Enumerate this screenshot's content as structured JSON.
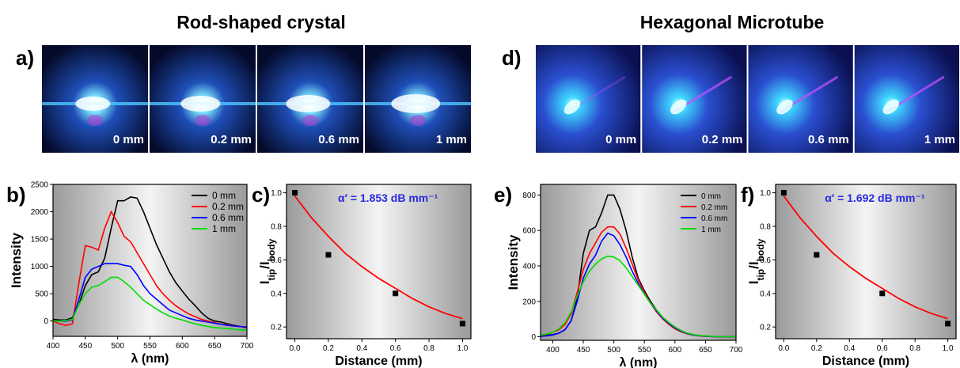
{
  "figure": {
    "left_title": "Rod-shaped crystal",
    "right_title": "Hexagonal Microtube"
  },
  "photo_panels": [
    {
      "label": "a)",
      "frames": [
        "0 mm",
        "0.2 mm",
        "0.6 mm",
        "1 mm"
      ]
    },
    {
      "label": "d)",
      "frames": [
        "0 mm",
        "0.2 mm",
        "0.6 mm",
        "1 mm"
      ]
    }
  ],
  "chart_data": [
    {
      "type": "line",
      "panel_label": "b)",
      "xlabel": "λ (nm)",
      "ylabel": [
        "Intensity"
      ],
      "xlim": [
        400,
        700
      ],
      "ylim": [
        -280,
        2500
      ],
      "xticks": [
        400,
        450,
        500,
        550,
        600,
        650,
        700
      ],
      "yticks": [
        0,
        500,
        1000,
        1500,
        2000,
        2500
      ],
      "legend": "upper right",
      "x": [
        400,
        410,
        420,
        430,
        440,
        450,
        460,
        470,
        480,
        490,
        500,
        510,
        520,
        530,
        540,
        550,
        560,
        570,
        580,
        590,
        600,
        610,
        620,
        630,
        640,
        650,
        660,
        670,
        680,
        690,
        700
      ],
      "series": [
        {
          "name": "0 mm",
          "color": "#000000",
          "values": [
            30,
            20,
            20,
            60,
            300,
            650,
            850,
            900,
            1150,
            1700,
            2200,
            2200,
            2270,
            2250,
            2000,
            1700,
            1400,
            1150,
            900,
            700,
            550,
            400,
            280,
            150,
            50,
            0,
            -20,
            -50,
            -80,
            -100,
            -120
          ]
        },
        {
          "name": "0.2 mm",
          "color": "#ff0000",
          "values": [
            0,
            -50,
            -80,
            -50,
            700,
            1380,
            1350,
            1300,
            1700,
            2000,
            1800,
            1550,
            1450,
            1250,
            1050,
            850,
            650,
            500,
            380,
            280,
            200,
            130,
            80,
            30,
            0,
            -30,
            -60,
            -70,
            -90,
            -100,
            -110
          ]
        },
        {
          "name": "0.6 mm",
          "color": "#0000ff",
          "values": [
            0,
            0,
            0,
            20,
            400,
            800,
            950,
            1000,
            1050,
            1050,
            1050,
            1020,
            1000,
            850,
            650,
            500,
            400,
            300,
            200,
            150,
            100,
            50,
            20,
            0,
            -20,
            -40,
            -60,
            -80,
            -90,
            -100,
            -110
          ]
        },
        {
          "name": "1 mm",
          "color": "#00dd00",
          "values": [
            0,
            0,
            10,
            30,
            300,
            500,
            620,
            650,
            720,
            800,
            800,
            720,
            620,
            500,
            380,
            300,
            220,
            150,
            90,
            50,
            20,
            -20,
            -50,
            -80,
            -100,
            -120,
            -130,
            -140,
            -150,
            -160,
            -170
          ]
        }
      ]
    },
    {
      "type": "scatter",
      "panel_label": "c)",
      "xlabel": "Distance (mm)",
      "ylabel": [
        "I",
        "tip",
        "/I",
        "body"
      ],
      "annotation": "α′ = 1.853 dB mm⁻¹",
      "xlim": [
        -0.05,
        1.05
      ],
      "ylim": [
        0.13,
        1.05
      ],
      "xticks": [
        {
          "value": 0,
          "label": "0.0"
        },
        0.2,
        0.4,
        0.6,
        0.8,
        {
          "value": 1,
          "label": "1.0"
        }
      ],
      "yticks": [
        0.2,
        0.4,
        0.6,
        0.8,
        {
          "value": 1,
          "label": "1.0"
        }
      ],
      "points": {
        "color": "#000000",
        "x": [
          0,
          0.2,
          0.6,
          1.0
        ],
        "y": [
          1.0,
          0.63,
          0.4,
          0.22
        ]
      },
      "fit": {
        "color": "#ff0000",
        "x": [
          0,
          0.1,
          0.2,
          0.3,
          0.4,
          0.5,
          0.6,
          0.7,
          0.8,
          0.9,
          1.0
        ],
        "y": [
          0.98,
          0.85,
          0.74,
          0.64,
          0.56,
          0.49,
          0.43,
          0.37,
          0.32,
          0.28,
          0.25
        ]
      }
    },
    {
      "type": "line",
      "panel_label": "e)",
      "xlabel": "λ (nm)",
      "ylabel": [
        "Intensity"
      ],
      "xlim": [
        380,
        700
      ],
      "ylim": [
        -20,
        860
      ],
      "xticks": [
        400,
        450,
        500,
        550,
        600,
        650,
        700
      ],
      "yticks": [
        0,
        200,
        400,
        600,
        800
      ],
      "legend": "upper right",
      "x": [
        380,
        390,
        400,
        410,
        420,
        430,
        440,
        450,
        460,
        470,
        480,
        490,
        500,
        510,
        520,
        530,
        540,
        550,
        560,
        570,
        580,
        590,
        600,
        610,
        620,
        630,
        640,
        650,
        660,
        670,
        680,
        690,
        700
      ],
      "series": [
        {
          "name": "0 mm",
          "color": "#000000",
          "values": [
            5,
            8,
            12,
            20,
            40,
            90,
            220,
            470,
            600,
            620,
            700,
            800,
            800,
            720,
            600,
            450,
            330,
            260,
            200,
            150,
            110,
            80,
            55,
            35,
            20,
            12,
            7,
            4,
            2,
            1,
            0,
            0,
            0
          ]
        },
        {
          "name": "0.2 mm",
          "color": "#ff0000",
          "values": [
            10,
            15,
            25,
            40,
            70,
            130,
            250,
            380,
            470,
            530,
            590,
            620,
            620,
            580,
            500,
            410,
            320,
            250,
            190,
            140,
            100,
            70,
            45,
            28,
            16,
            9,
            5,
            3,
            1,
            0,
            0,
            0,
            0
          ]
        },
        {
          "name": "0.6 mm",
          "color": "#0000ff",
          "values": [
            3,
            5,
            10,
            20,
            40,
            90,
            200,
            330,
            410,
            460,
            540,
            585,
            570,
            520,
            450,
            370,
            300,
            240,
            190,
            145,
            105,
            75,
            50,
            32,
            18,
            10,
            6,
            3,
            1,
            0,
            0,
            0,
            0
          ]
        },
        {
          "name": "1 mm",
          "color": "#00dd00",
          "values": [
            10,
            15,
            25,
            45,
            80,
            140,
            230,
            310,
            370,
            410,
            440,
            455,
            450,
            430,
            390,
            340,
            290,
            240,
            190,
            150,
            110,
            80,
            55,
            35,
            20,
            12,
            7,
            4,
            2,
            1,
            0,
            0,
            0
          ]
        }
      ]
    },
    {
      "type": "scatter",
      "panel_label": "f)",
      "xlabel": "Distance (mm)",
      "ylabel": [
        "I",
        "tip",
        "/I",
        "body"
      ],
      "annotation": "α′ = 1.692 dB mm⁻¹",
      "xlim": [
        -0.05,
        1.05
      ],
      "ylim": [
        0.13,
        1.05
      ],
      "xticks": [
        {
          "value": 0,
          "label": "0.0"
        },
        0.2,
        0.4,
        0.6,
        0.8,
        {
          "value": 1,
          "label": "1.0"
        }
      ],
      "yticks": [
        0.2,
        0.4,
        0.6,
        0.8,
        {
          "value": 1,
          "label": "1.0"
        }
      ],
      "points": {
        "color": "#000000",
        "x": [
          0,
          0.2,
          0.6,
          1.0
        ],
        "y": [
          1.0,
          0.63,
          0.4,
          0.22
        ]
      },
      "fit": {
        "color": "#ff0000",
        "x": [
          0,
          0.1,
          0.2,
          0.3,
          0.4,
          0.5,
          0.6,
          0.7,
          0.8,
          0.9,
          1.0
        ],
        "y": [
          0.98,
          0.85,
          0.74,
          0.64,
          0.56,
          0.49,
          0.43,
          0.37,
          0.32,
          0.28,
          0.25
        ]
      }
    }
  ]
}
